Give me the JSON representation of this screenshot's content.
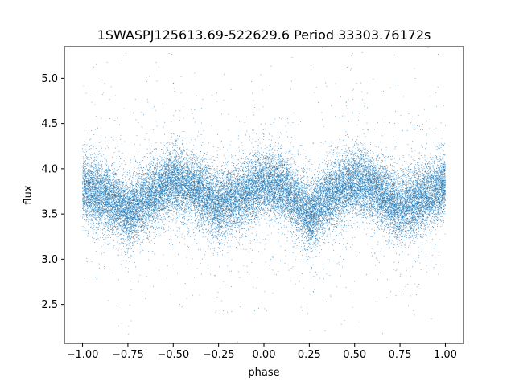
{
  "chart_data": {
    "type": "scatter",
    "title": "1SWASPJ125613.69-522629.6 Period 33303.76172s",
    "xlabel": "phase",
    "ylabel": "flux",
    "xlim": [
      -1.1,
      1.1
    ],
    "ylim": [
      2.07,
      5.35
    ],
    "xticks": [
      {
        "value": -1.0,
        "label": "−1.00"
      },
      {
        "value": -0.75,
        "label": "−0.75"
      },
      {
        "value": -0.5,
        "label": "−0.50"
      },
      {
        "value": -0.25,
        "label": "−0.25"
      },
      {
        "value": 0.0,
        "label": "0.00"
      },
      {
        "value": 0.25,
        "label": "0.25"
      },
      {
        "value": 0.5,
        "label": "0.50"
      },
      {
        "value": 0.75,
        "label": "0.75"
      },
      {
        "value": 1.0,
        "label": "1.00"
      }
    ],
    "yticks": [
      {
        "value": 2.5,
        "label": "2.5"
      },
      {
        "value": 3.0,
        "label": "3.0"
      },
      {
        "value": 3.5,
        "label": "3.5"
      },
      {
        "value": 4.0,
        "label": "4.0"
      },
      {
        "value": 4.5,
        "label": "4.5"
      },
      {
        "value": 5.0,
        "label": "5.0"
      }
    ],
    "grid": false,
    "marker_color": "#1f77b4",
    "series": [
      {
        "x_range": [
          -1.0,
          1.0
        ],
        "trend_phase": [
          -1.0,
          -0.875,
          -0.75,
          -0.625,
          -0.5,
          -0.375,
          -0.25,
          -0.125,
          0.0,
          0.125,
          0.25,
          0.375,
          0.5,
          0.625,
          0.75,
          0.875,
          1.0
        ],
        "trend_flux": [
          3.78,
          3.7,
          3.5,
          3.7,
          3.87,
          3.78,
          3.6,
          3.7,
          3.84,
          3.77,
          3.47,
          3.72,
          3.86,
          3.78,
          3.56,
          3.68,
          3.82
        ],
        "scatter_std": 0.18,
        "point_count": 30000
      }
    ]
  }
}
